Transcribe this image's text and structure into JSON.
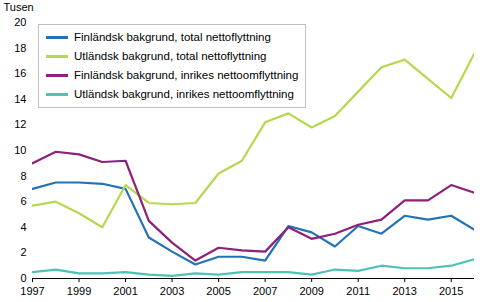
{
  "chart_data": {
    "type": "line",
    "y_label": "Tusen",
    "x": [
      1997,
      1998,
      1999,
      2000,
      2001,
      2002,
      2003,
      2004,
      2005,
      2006,
      2007,
      2008,
      2009,
      2010,
      2011,
      2012,
      2013,
      2014,
      2015,
      2016
    ],
    "xlim": [
      1997,
      2016
    ],
    "xticks": [
      1997,
      1999,
      2001,
      2003,
      2005,
      2007,
      2009,
      2011,
      2013,
      2015
    ],
    "ylim": [
      0,
      20
    ],
    "yticks": [
      0,
      2,
      4,
      6,
      8,
      10,
      12,
      14,
      16,
      18,
      20
    ],
    "grid": false,
    "legend": "top-left",
    "series": [
      {
        "name": "Finländsk bakgrund, total nettoflyttning",
        "color": "#2272b5",
        "values": [
          7.0,
          7.5,
          7.5,
          7.4,
          7.0,
          3.2,
          2.1,
          1.1,
          1.7,
          1.7,
          1.4,
          4.1,
          3.6,
          2.5,
          4.1,
          3.5,
          4.9,
          4.6,
          4.9,
          3.8
        ]
      },
      {
        "name": "Utländsk bakgrund, total nettoflyttning",
        "color": "#b5d84f",
        "values": [
          5.7,
          6.0,
          5.1,
          4.0,
          7.3,
          5.9,
          5.8,
          5.9,
          8.2,
          9.2,
          12.2,
          12.9,
          11.8,
          12.7,
          14.6,
          16.5,
          17.1,
          15.6,
          14.1,
          17.6
        ]
      },
      {
        "name": "Finländsk bakgrund, inrikes nettoomflyttning",
        "color": "#8e1f7d",
        "values": [
          9.0,
          9.9,
          9.7,
          9.1,
          9.2,
          4.5,
          2.8,
          1.4,
          2.4,
          2.2,
          2.1,
          4.0,
          3.1,
          3.5,
          4.2,
          4.6,
          6.1,
          6.1,
          7.3,
          6.7
        ]
      },
      {
        "name": "Utländsk bakgrund, inrikes nettoomflyttning",
        "color": "#4dc3b5",
        "values": [
          0.5,
          0.7,
          0.4,
          0.4,
          0.5,
          0.3,
          0.2,
          0.4,
          0.3,
          0.5,
          0.5,
          0.5,
          0.3,
          0.7,
          0.6,
          1.0,
          0.8,
          0.8,
          1.0,
          1.5
        ]
      }
    ]
  }
}
